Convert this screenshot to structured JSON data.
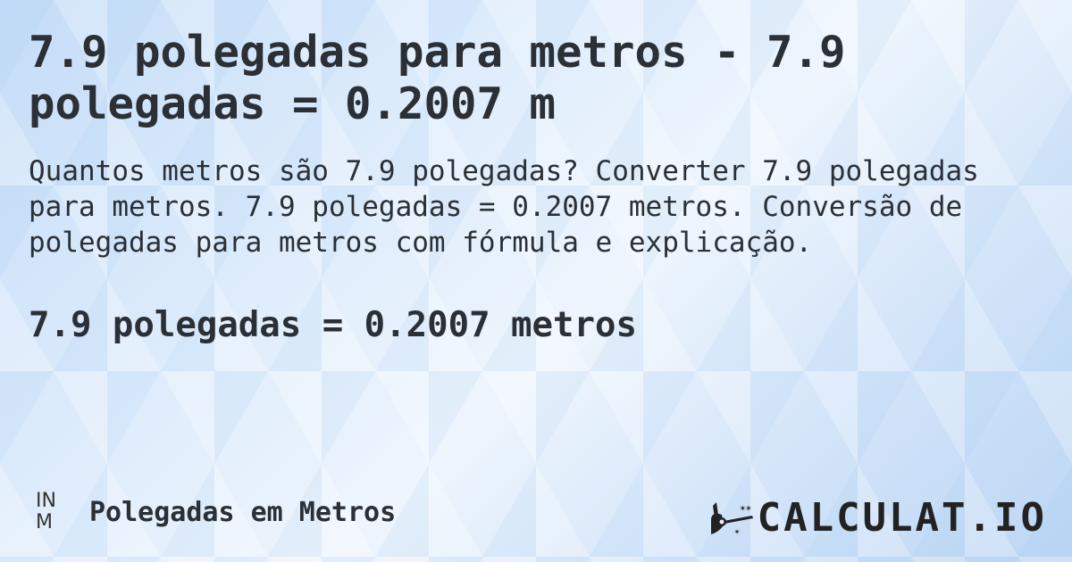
{
  "title": "7.9 polegadas para metros - 7.9 polegadas = 0.2007 m",
  "description": "Quantos metros são 7.9 polegadas? Converter 7.9 polegadas para metros. 7.9 polegadas = 0.2007 metros. Conversão de polegadas para metros com fórmula e explicação.",
  "result": "7.9 polegadas = 0.2007 metros",
  "category": {
    "abbr_top": "IN",
    "abbr_bottom": "M",
    "label": "Polegadas em Metros"
  },
  "logo": {
    "text": "CALCULAT.IO",
    "icon": "magic-wand-hand-icon"
  }
}
